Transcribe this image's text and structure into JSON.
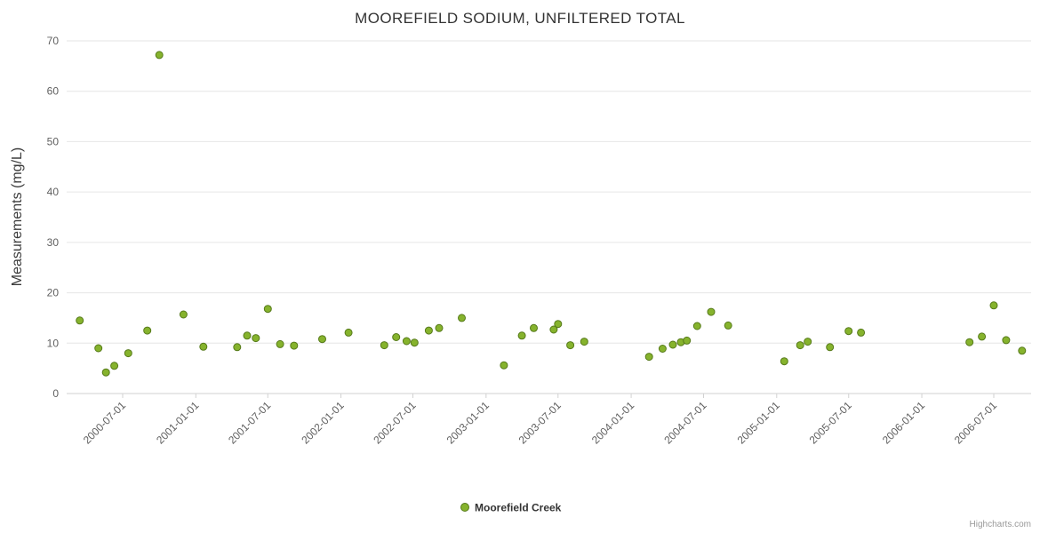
{
  "chart": {
    "title": "MOOREFIELD SODIUM, UNFILTERED TOTAL",
    "y_axis": {
      "title": "Measurements (mg/L)",
      "ticks": [
        0,
        10,
        20,
        30,
        40,
        50,
        60,
        70
      ],
      "min": 0,
      "max": 70
    },
    "x_axis": {
      "tick_labels": [
        "2000-07-01",
        "2001-01-01",
        "2001-07-01",
        "2002-01-01",
        "2002-07-01",
        "2003-01-01",
        "2003-07-01",
        "2004-01-01",
        "2004-07-01",
        "2005-01-01",
        "2005-07-01",
        "2006-01-01",
        "2006-07-01"
      ]
    },
    "legend": {
      "label": "Moorefield Creek"
    },
    "credits": "Highcharts.com",
    "colors": {
      "point_fill": "#86b32d",
      "point_stroke": "#567a1a",
      "grid": "#e6e6e6",
      "axis_line": "#d2d2d2",
      "tick_text": "#606060",
      "title_text": "#333333"
    }
  },
  "chart_data": {
    "type": "scatter",
    "title": "MOOREFIELD SODIUM, UNFILTERED TOTAL",
    "xlabel": "",
    "ylabel": "Measurements (mg/L)",
    "ylim": [
      0,
      70
    ],
    "legend_position": "bottom-center",
    "grid": true,
    "series": [
      {
        "name": "Moorefield Creek",
        "points": [
          {
            "date": "2000-03-15",
            "value": 14.5
          },
          {
            "date": "2000-05-01",
            "value": 9.0
          },
          {
            "date": "2000-05-20",
            "value": 4.2
          },
          {
            "date": "2000-06-10",
            "value": 5.5
          },
          {
            "date": "2000-07-15",
            "value": 8.0
          },
          {
            "date": "2000-09-01",
            "value": 12.5
          },
          {
            "date": "2000-10-01",
            "value": 67.2
          },
          {
            "date": "2000-12-01",
            "value": 15.7
          },
          {
            "date": "2001-01-20",
            "value": 9.3
          },
          {
            "date": "2001-04-15",
            "value": 9.2
          },
          {
            "date": "2001-05-10",
            "value": 11.5
          },
          {
            "date": "2001-06-01",
            "value": 11.0
          },
          {
            "date": "2001-07-01",
            "value": 16.8
          },
          {
            "date": "2001-08-01",
            "value": 9.8
          },
          {
            "date": "2001-09-05",
            "value": 9.5
          },
          {
            "date": "2001-11-15",
            "value": 10.8
          },
          {
            "date": "2002-01-20",
            "value": 12.1
          },
          {
            "date": "2002-04-20",
            "value": 9.6
          },
          {
            "date": "2002-05-20",
            "value": 11.2
          },
          {
            "date": "2002-06-15",
            "value": 10.4
          },
          {
            "date": "2002-07-05",
            "value": 10.1
          },
          {
            "date": "2002-08-10",
            "value": 12.5
          },
          {
            "date": "2002-09-05",
            "value": 13.0
          },
          {
            "date": "2002-11-01",
            "value": 15.0
          },
          {
            "date": "2003-02-15",
            "value": 5.6
          },
          {
            "date": "2003-04-01",
            "value": 11.5
          },
          {
            "date": "2003-05-01",
            "value": 13.0
          },
          {
            "date": "2003-06-20",
            "value": 12.7
          },
          {
            "date": "2003-07-01",
            "value": 13.8
          },
          {
            "date": "2003-08-01",
            "value": 9.6
          },
          {
            "date": "2003-09-05",
            "value": 10.3
          },
          {
            "date": "2004-02-15",
            "value": 7.3
          },
          {
            "date": "2004-03-20",
            "value": 8.9
          },
          {
            "date": "2004-04-15",
            "value": 9.7
          },
          {
            "date": "2004-05-05",
            "value": 10.2
          },
          {
            "date": "2004-05-20",
            "value": 10.5
          },
          {
            "date": "2004-06-15",
            "value": 13.4
          },
          {
            "date": "2004-07-20",
            "value": 16.2
          },
          {
            "date": "2004-09-01",
            "value": 13.5
          },
          {
            "date": "2005-01-20",
            "value": 6.4
          },
          {
            "date": "2005-03-01",
            "value": 9.6
          },
          {
            "date": "2005-03-20",
            "value": 10.3
          },
          {
            "date": "2005-05-15",
            "value": 9.2
          },
          {
            "date": "2005-07-01",
            "value": 12.4
          },
          {
            "date": "2005-08-01",
            "value": 12.1
          },
          {
            "date": "2006-05-01",
            "value": 10.2
          },
          {
            "date": "2006-06-01",
            "value": 11.3
          },
          {
            "date": "2006-07-01",
            "value": 17.5
          },
          {
            "date": "2006-08-01",
            "value": 10.6
          },
          {
            "date": "2006-09-10",
            "value": 8.5
          }
        ]
      }
    ]
  }
}
